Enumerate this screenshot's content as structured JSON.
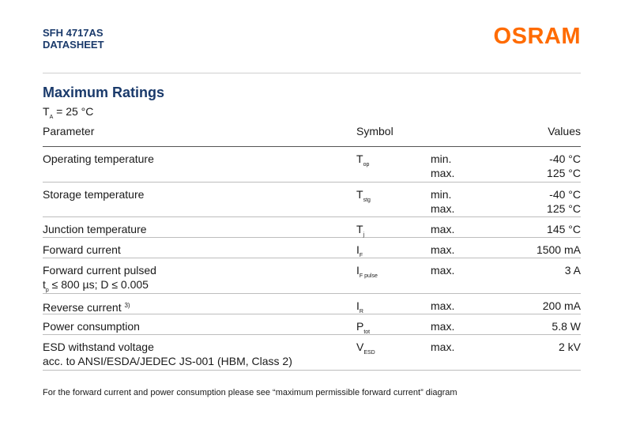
{
  "header": {
    "product": "SFH 4717AS",
    "doc_type": "DATASHEET",
    "brand": "OSRAM"
  },
  "section": {
    "title": "Maximum Ratings",
    "condition_main": "T",
    "condition_sub": "A",
    "condition_rest": " = 25 °C"
  },
  "table": {
    "columns": {
      "parameter": "Parameter",
      "symbol": "Symbol",
      "values": "Values"
    },
    "rows": [
      {
        "param": "Operating temperature",
        "sym": "T",
        "sym_sub": "op",
        "limits": [
          "min.",
          "max."
        ],
        "values": [
          "-40 °C",
          "125 °C"
        ]
      },
      {
        "param": "Storage temperature",
        "sym": "T",
        "sym_sub": "stg",
        "limits": [
          "min.",
          "max."
        ],
        "values": [
          "-40 °C",
          "125 °C"
        ]
      },
      {
        "param": "Junction temperature",
        "sym": "T",
        "sym_sub": "j",
        "limits": [
          "max."
        ],
        "values": [
          "145 °C"
        ]
      },
      {
        "param": "Forward current",
        "sym": "I",
        "sym_sub": "F",
        "limits": [
          "max."
        ],
        "values": [
          "1500 mA"
        ]
      },
      {
        "param": "Forward current pulsed",
        "param2_main": "t",
        "param2_sub": "p",
        "param2_rest": " ≤ 800 µs; D ≤ 0.005",
        "sym": "I",
        "sym_sub": "F pulse",
        "limits": [
          "max."
        ],
        "values": [
          "3 A"
        ]
      },
      {
        "param": "Reverse current",
        "param_sup": "3)",
        "sym": "I",
        "sym_sub": "R",
        "limits": [
          "max."
        ],
        "values": [
          "200 mA"
        ]
      },
      {
        "param": "Power consumption",
        "sym": "P",
        "sym_sub": "tot",
        "limits": [
          "max."
        ],
        "values": [
          "5.8 W"
        ]
      },
      {
        "param": "ESD withstand voltage",
        "param2": "acc. to ANSI/ESDA/JEDEC JS-001 (HBM, Class 2)",
        "sym": "V",
        "sym_sub": "ESD",
        "limits": [
          "max."
        ],
        "values": [
          "2 kV"
        ]
      }
    ]
  },
  "footnote": "For the forward current and power consumption please see “maximum permissible forward current” diagram"
}
